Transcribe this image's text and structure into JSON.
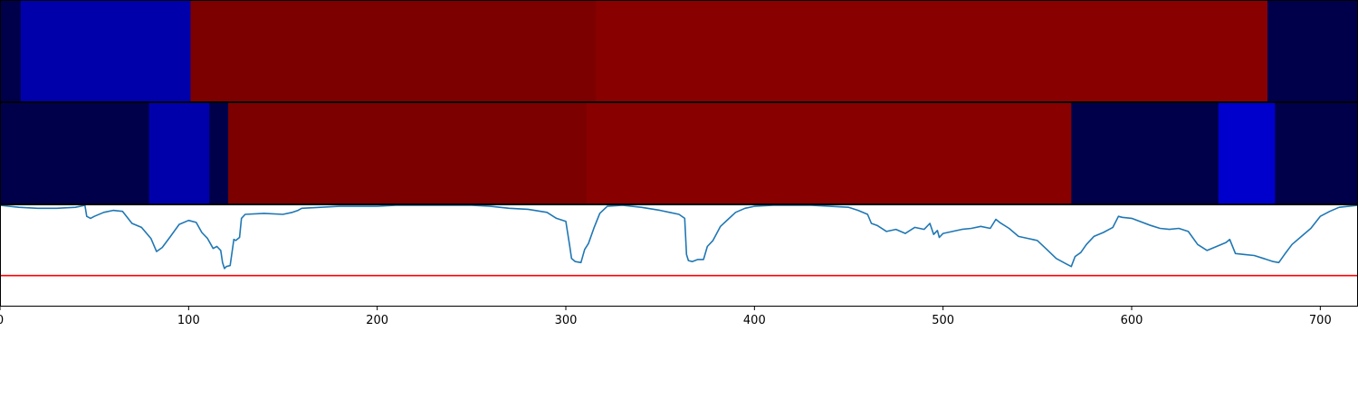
{
  "chart_data": [
    {
      "type": "heatmap",
      "xlim": [
        0,
        720
      ],
      "segments": [
        {
          "x0": 0,
          "x1": 11,
          "color": "#00004a"
        },
        {
          "x0": 11,
          "x1": 101,
          "color": "#0000aa"
        },
        {
          "x0": 101,
          "x1": 316,
          "color": "#7c0000"
        },
        {
          "x0": 316,
          "x1": 672,
          "color": "#880000"
        },
        {
          "x0": 672,
          "x1": 720,
          "color": "#00004a"
        }
      ]
    },
    {
      "type": "heatmap",
      "xlim": [
        0,
        720
      ],
      "segments": [
        {
          "x0": 0,
          "x1": 79,
          "color": "#00004a"
        },
        {
          "x0": 79,
          "x1": 111,
          "color": "#0000aa"
        },
        {
          "x0": 111,
          "x1": 121,
          "color": "#00004a"
        },
        {
          "x0": 121,
          "x1": 311,
          "color": "#7c0000"
        },
        {
          "x0": 311,
          "x1": 568,
          "color": "#880000"
        },
        {
          "x0": 568,
          "x1": 646,
          "color": "#00004a"
        },
        {
          "x0": 646,
          "x1": 676,
          "color": "#0000cc"
        },
        {
          "x0": 676,
          "x1": 720,
          "color": "#00004a"
        }
      ]
    },
    {
      "type": "line",
      "xlim": [
        0,
        720
      ],
      "ylim": [
        0,
        1
      ],
      "threshold": 0.3,
      "threshold_color": "#ff0000",
      "line_color": "#1f77b4",
      "xticks": [
        0,
        100,
        200,
        300,
        400,
        500,
        600,
        700
      ],
      "xtick_labels": [
        "0",
        "100",
        "200",
        "300",
        "400",
        "500",
        "600",
        "700"
      ],
      "series": [
        {
          "x": [
            0,
            10,
            20,
            30,
            40,
            45,
            46,
            48,
            50,
            55,
            60,
            65,
            70,
            75,
            80,
            83,
            86,
            90,
            95,
            100,
            104,
            107,
            110,
            113,
            115,
            117,
            118,
            119,
            120,
            122,
            124,
            125,
            127,
            128,
            130,
            140,
            150,
            155,
            158,
            160,
            170,
            180,
            190,
            200,
            210,
            220,
            230,
            240,
            250,
            260,
            270,
            280,
            290,
            295,
            300,
            302,
            303,
            305,
            308,
            310,
            312,
            315,
            318,
            322,
            330,
            340,
            350,
            355,
            360,
            363,
            364,
            365,
            367,
            370,
            373,
            375,
            378,
            382,
            386,
            390,
            395,
            400,
            410,
            420,
            430,
            440,
            450,
            455,
            460,
            462,
            465,
            470,
            475,
            480,
            485,
            490,
            493,
            495,
            497,
            498,
            500,
            505,
            510,
            515,
            520,
            525,
            528,
            530,
            535,
            540,
            545,
            550,
            555,
            560,
            565,
            568,
            570,
            573,
            576,
            580,
            585,
            590,
            593,
            595,
            600,
            610,
            615,
            620,
            625,
            630,
            635,
            640,
            645,
            650,
            652,
            655,
            660,
            665,
            670,
            675,
            678,
            681,
            685,
            690,
            695,
            700,
            705,
            710,
            715,
            720
          ],
          "y": [
            1.0,
            0.98,
            0.97,
            0.97,
            0.98,
            1.0,
            0.89,
            0.87,
            0.89,
            0.93,
            0.95,
            0.94,
            0.82,
            0.78,
            0.67,
            0.54,
            0.58,
            0.68,
            0.81,
            0.85,
            0.83,
            0.73,
            0.67,
            0.57,
            0.59,
            0.55,
            0.43,
            0.37,
            0.39,
            0.4,
            0.66,
            0.65,
            0.68,
            0.87,
            0.91,
            0.92,
            0.91,
            0.93,
            0.95,
            0.97,
            0.98,
            0.99,
            0.99,
            0.99,
            1.0,
            1.0,
            1.0,
            1.0,
            1.0,
            0.99,
            0.97,
            0.96,
            0.93,
            0.87,
            0.84,
            0.6,
            0.47,
            0.44,
            0.43,
            0.56,
            0.62,
            0.78,
            0.92,
            0.99,
            1.0,
            0.98,
            0.95,
            0.93,
            0.91,
            0.87,
            0.51,
            0.45,
            0.44,
            0.46,
            0.46,
            0.59,
            0.65,
            0.79,
            0.86,
            0.93,
            0.97,
            0.99,
            1.0,
            1.0,
            1.0,
            0.99,
            0.98,
            0.95,
            0.91,
            0.82,
            0.8,
            0.74,
            0.76,
            0.72,
            0.78,
            0.76,
            0.82,
            0.71,
            0.75,
            0.68,
            0.72,
            0.74,
            0.76,
            0.77,
            0.79,
            0.77,
            0.86,
            0.83,
            0.77,
            0.69,
            0.67,
            0.65,
            0.56,
            0.47,
            0.42,
            0.39,
            0.49,
            0.53,
            0.61,
            0.69,
            0.73,
            0.78,
            0.89,
            0.88,
            0.87,
            0.8,
            0.77,
            0.76,
            0.77,
            0.74,
            0.61,
            0.55,
            0.59,
            0.63,
            0.66,
            0.52,
            0.51,
            0.5,
            0.47,
            0.44,
            0.43,
            0.51,
            0.61,
            0.69,
            0.77,
            0.89,
            0.94,
            0.98,
            0.99,
            1.0
          ]
        }
      ]
    }
  ]
}
